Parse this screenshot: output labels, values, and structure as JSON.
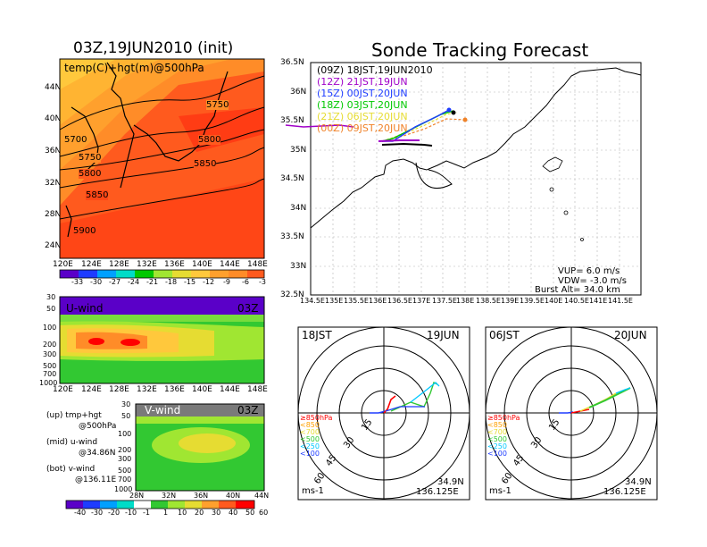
{
  "left_title": "03Z,19JUN2010 (init)",
  "right_title": "Sonde Tracking Forecast",
  "map_panel": {
    "label": "temp(C)+hgt(m)@500hPa",
    "lat_ticks": [
      "44N",
      "40N",
      "36N",
      "32N",
      "28N",
      "24N"
    ],
    "lon_ticks": [
      "120E",
      "124E",
      "128E",
      "132E",
      "136E",
      "140E",
      "144E",
      "148E"
    ],
    "contour_labels": [
      "5700",
      "5750",
      "5750",
      "5800",
      "5800",
      "5850",
      "5850",
      "5900"
    ]
  },
  "temp_colorbar": {
    "labels": [
      "-33",
      "-30",
      "-27",
      "-24",
      "-21",
      "-18",
      "-15",
      "-12",
      "-9",
      "-6",
      "-3"
    ]
  },
  "uwind_panel": {
    "label": "U-wind",
    "time": "03Z",
    "p_ticks": [
      "30",
      "50",
      "100",
      "200",
      "300",
      "500",
      "700",
      "1000"
    ],
    "lon_ticks": [
      "120E",
      "124E",
      "128E",
      "132E",
      "136E",
      "140E",
      "144E",
      "148E"
    ]
  },
  "vwind_panel": {
    "label": "V-wind",
    "time": "03Z",
    "p_ticks": [
      "30",
      "50",
      "100",
      "200",
      "300",
      "500",
      "700",
      "1000"
    ],
    "lat_ticks": [
      "28N",
      "32N",
      "36N",
      "40N",
      "44N"
    ]
  },
  "wind_colorbar": {
    "labels": [
      "-40",
      "-30",
      "-20",
      "-10",
      "-1",
      "1",
      "10",
      "20",
      "30",
      "40",
      "50",
      "60"
    ]
  },
  "notes": [
    {
      "line1": "(up)  tmp+hgt",
      "line2": "@500hPa"
    },
    {
      "line1": "(mid)  u-wind",
      "line2": "@34.86N"
    },
    {
      "line1": "(bot)  v-wind",
      "line2": "@136.11E"
    }
  ],
  "track_map": {
    "lat_ticks": [
      "36.5N",
      "36N",
      "35.5N",
      "35N",
      "34.5N",
      "34N",
      "33.5N",
      "33N",
      "32.5N"
    ],
    "lon_ticks": [
      "134.5E",
      "135E",
      "135.5E",
      "136E",
      "136.5E",
      "137E",
      "137.5E",
      "138E",
      "138.5E",
      "139E",
      "139.5E",
      "140E",
      "140.5E",
      "141E",
      "141.5E"
    ],
    "legend": [
      {
        "text": "(09Z)  18JST,19JUN2010",
        "color": "#000000"
      },
      {
        "text": "(12Z)  21JST,19JUN",
        "color": "#a000c8"
      },
      {
        "text": "(15Z)  00JST,20JUN",
        "color": "#1e3cff"
      },
      {
        "text": "(18Z)  03JST,20JUN",
        "color": "#00c800"
      },
      {
        "text": "(21Z)  06JST,20JUN",
        "color": "#e6dc32"
      },
      {
        "text": "(00Z)  09JST,20JUN",
        "color": "#f08228"
      }
    ],
    "params": [
      "VUP=  6.0  m/s",
      "VDW=  -3.0  m/s",
      "Burst Alt=  34.0  km"
    ]
  },
  "hodo1": {
    "left": "18JST",
    "right": "19JUN",
    "rings": [
      "15",
      "30",
      "45",
      "60"
    ],
    "unit": "ms-1",
    "lat": "34.9N",
    "lon": "136.125E",
    "levels": [
      {
        "text": "≥850hPa",
        "color": "#ff0000"
      },
      {
        "text": "<850",
        "color": "#ffa000"
      },
      {
        "text": "<700",
        "color": "#e6dc32"
      },
      {
        "text": "<500",
        "color": "#32c832"
      },
      {
        "text": "<250",
        "color": "#00c8ff"
      },
      {
        "text": "<100",
        "color": "#1e3cff"
      }
    ]
  },
  "hodo2": {
    "left": "06JST",
    "right": "20JUN",
    "rings": [
      "15",
      "30",
      "45",
      "60"
    ],
    "unit": "ms-1",
    "lat": "34.9N",
    "lon": "136.125E",
    "levels": [
      {
        "text": "≥850hPa",
        "color": "#ff0000"
      },
      {
        "text": "<850",
        "color": "#ffa000"
      },
      {
        "text": "<700",
        "color": "#e6dc32"
      },
      {
        "text": "<500",
        "color": "#32c832"
      },
      {
        "text": "<250",
        "color": "#00c8ff"
      },
      {
        "text": "<100",
        "color": "#1e3cff"
      }
    ]
  }
}
